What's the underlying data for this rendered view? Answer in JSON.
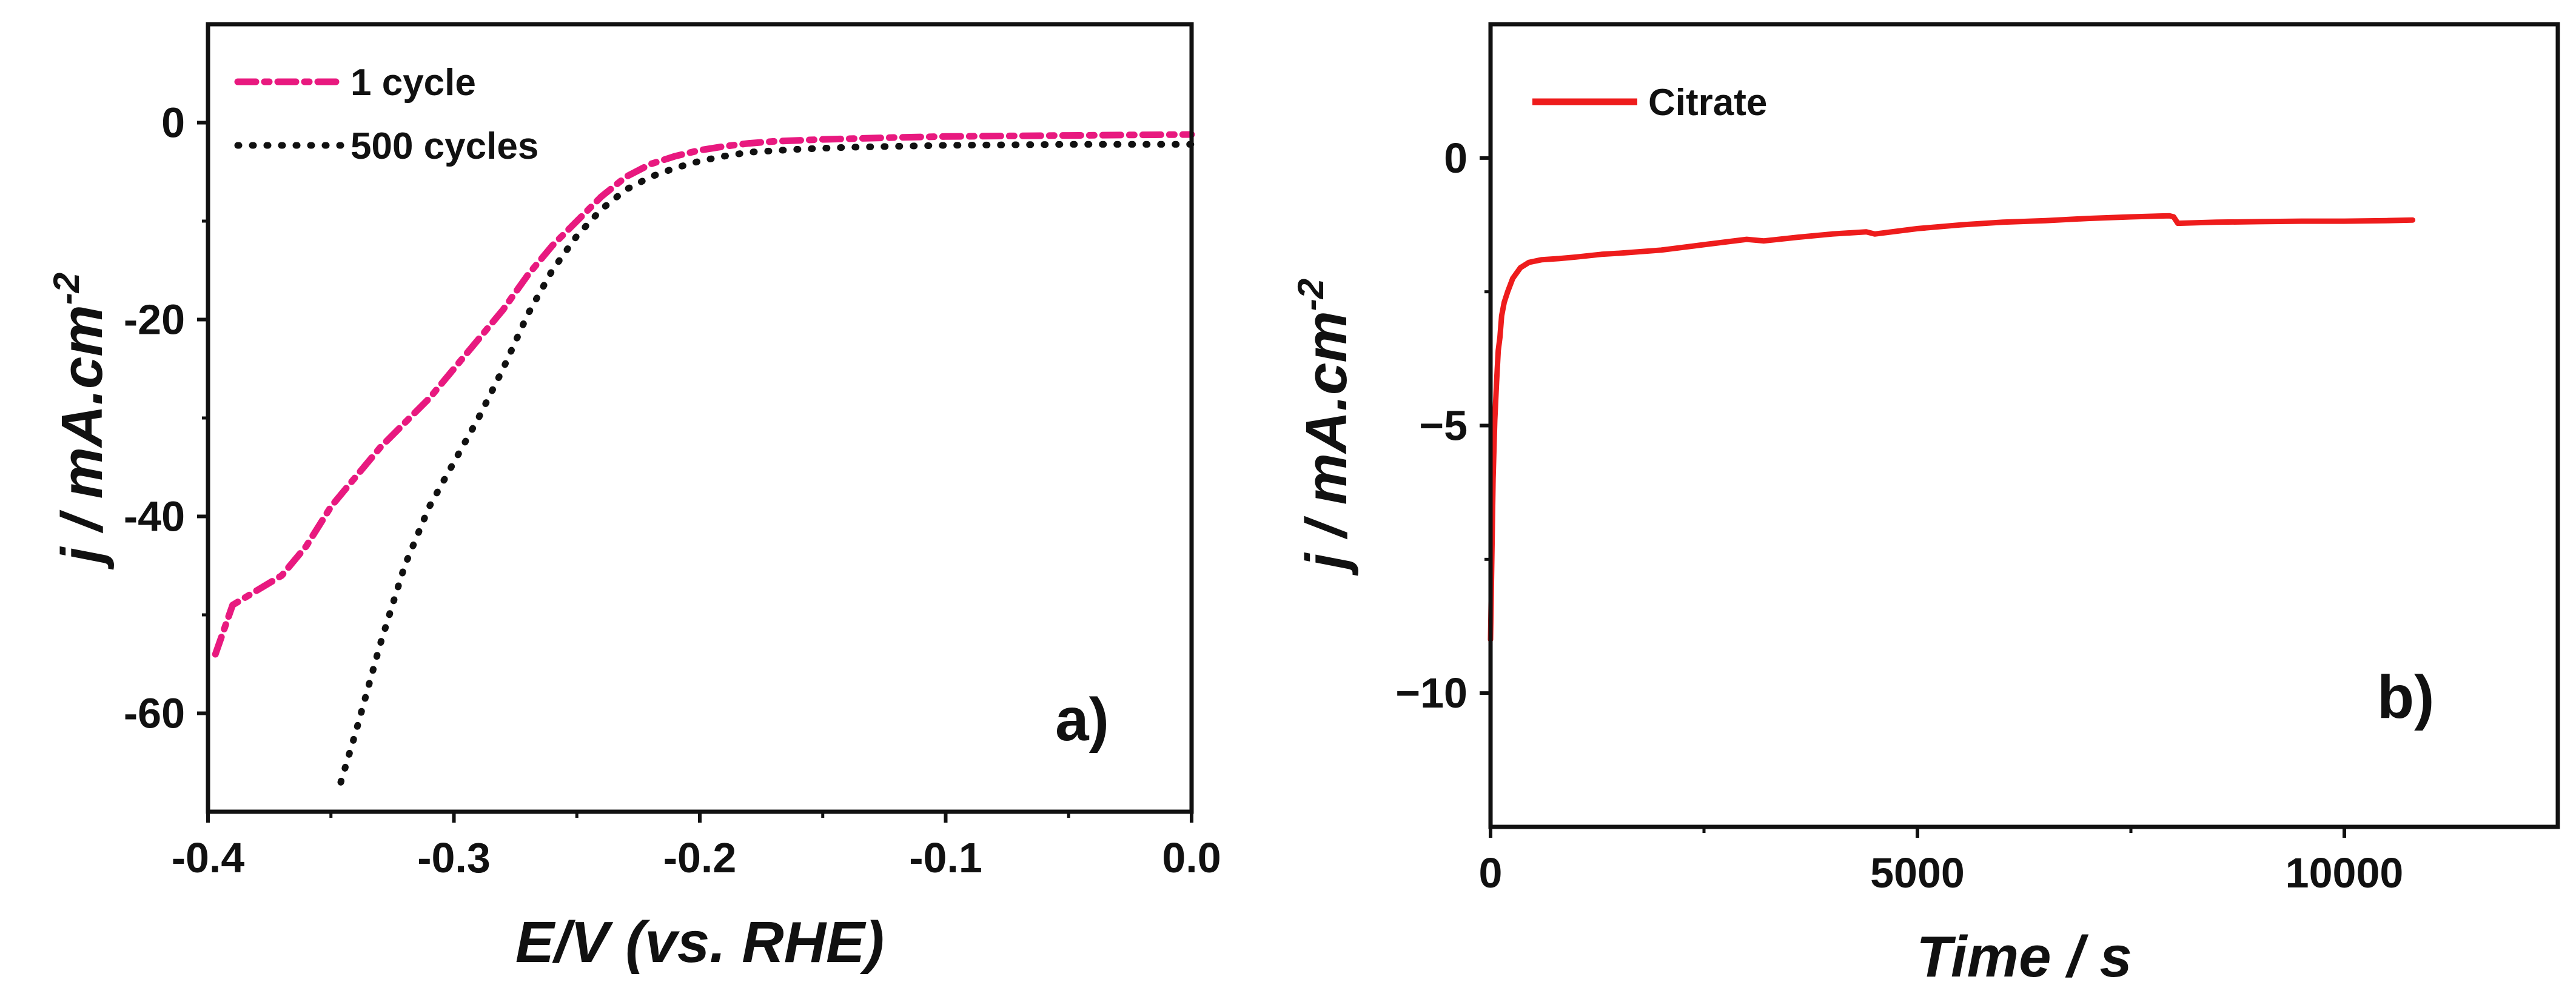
{
  "chart_data": [
    {
      "type": "line",
      "panel_label": "a)",
      "xlabel": "E/V (vs. RHE)",
      "ylabel": "j / mA.cm",
      "ylabel_sup": "-2",
      "xlim": [
        -0.4,
        0.0
      ],
      "ylim": [
        -70,
        10
      ],
      "xticks": [
        -0.4,
        -0.3,
        -0.2,
        -0.1,
        0.0
      ],
      "xtick_labels": [
        "-0.4",
        "-0.3",
        "-0.2",
        "-0.1",
        "0.0"
      ],
      "yticks": [
        0,
        -20,
        -40,
        -60
      ],
      "ytick_labels": [
        "0",
        "-20",
        "-40",
        "-60"
      ],
      "legend_position": "top-left",
      "series": [
        {
          "name": "1 cycle",
          "color": "#e8197f",
          "style": "dash-dot",
          "x": [
            -0.397,
            -0.39,
            -0.38,
            -0.37,
            -0.36,
            -0.35,
            -0.34,
            -0.33,
            -0.32,
            -0.31,
            -0.3,
            -0.29,
            -0.28,
            -0.27,
            -0.26,
            -0.25,
            -0.24,
            -0.23,
            -0.22,
            -0.21,
            -0.2,
            -0.19,
            -0.18,
            -0.17,
            -0.15,
            -0.12,
            -0.1,
            -0.05,
            0.0
          ],
          "y": [
            -54,
            -49,
            -47.5,
            -46,
            -43,
            -39,
            -36,
            -33,
            -30.5,
            -28,
            -25,
            -22,
            -19,
            -15.5,
            -12.5,
            -10,
            -7.5,
            -5.5,
            -4.2,
            -3.4,
            -2.8,
            -2.4,
            -2.1,
            -1.9,
            -1.7,
            -1.5,
            -1.4,
            -1.3,
            -1.2
          ]
        },
        {
          "name": "500 cycles",
          "color": "#111111",
          "style": "dotted",
          "x": [
            -0.346,
            -0.34,
            -0.33,
            -0.32,
            -0.31,
            -0.3,
            -0.29,
            -0.28,
            -0.27,
            -0.26,
            -0.25,
            -0.24,
            -0.23,
            -0.22,
            -0.21,
            -0.2,
            -0.19,
            -0.18,
            -0.16,
            -0.14,
            -0.12,
            -0.1,
            -0.05,
            0.0
          ],
          "y": [
            -67,
            -62,
            -53,
            -45,
            -39,
            -34.5,
            -30,
            -25,
            -19.5,
            -15,
            -11.5,
            -8.8,
            -6.8,
            -5.5,
            -4.6,
            -3.9,
            -3.4,
            -3.0,
            -2.7,
            -2.5,
            -2.4,
            -2.3,
            -2.2,
            -2.2
          ]
        }
      ]
    },
    {
      "type": "line",
      "panel_label": "b)",
      "xlabel": "Time / s",
      "ylabel": "j / mA.cm",
      "ylabel_sup": "-2",
      "xlim": [
        0,
        12500
      ],
      "ylim": [
        -12.5,
        2.5
      ],
      "xticks": [
        0,
        5000,
        10000
      ],
      "xtick_labels": [
        "0",
        "5000",
        "10000"
      ],
      "yticks": [
        0,
        -5,
        -10
      ],
      "ytick_labels": [
        "0",
        "−5",
        "−10"
      ],
      "legend_position": "top-left",
      "series": [
        {
          "name": "Citrate",
          "color": "#ee1c1c",
          "style": "solid",
          "x": [
            0,
            15,
            30,
            50,
            70,
            90,
            110,
            130,
            160,
            200,
            260,
            350,
            450,
            600,
            800,
            1000,
            1300,
            1500,
            2000,
            2500,
            3000,
            3200,
            3600,
            4000,
            4400,
            4500,
            5000,
            5500,
            6000,
            6500,
            7000,
            7500,
            7950,
            8000,
            8050,
            8500,
            9000,
            9500,
            10000,
            10500,
            10800
          ],
          "y": [
            -9.0,
            -7.5,
            -6.0,
            -4.9,
            -4.2,
            -3.6,
            -3.35,
            -2.95,
            -2.7,
            -2.5,
            -2.25,
            -2.05,
            -1.95,
            -1.9,
            -1.88,
            -1.85,
            -1.8,
            -1.78,
            -1.72,
            -1.62,
            -1.52,
            -1.55,
            -1.48,
            -1.42,
            -1.38,
            -1.42,
            -1.32,
            -1.25,
            -1.2,
            -1.17,
            -1.13,
            -1.1,
            -1.08,
            -1.1,
            -1.22,
            -1.2,
            -1.19,
            -1.18,
            -1.18,
            -1.17,
            -1.16
          ]
        }
      ]
    }
  ]
}
